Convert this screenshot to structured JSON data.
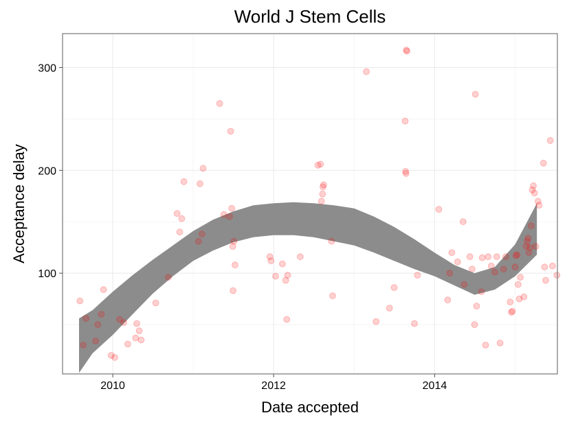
{
  "chart_data": {
    "type": "scatter",
    "title": "World J Stem Cells",
    "xlabel": "Date accepted",
    "ylabel": "Acceptance delay",
    "xlim": [
      "2009-05-18",
      "2015-07-12"
    ],
    "ylim": [
      2,
      333
    ],
    "xticks": [
      {
        "label": "2010",
        "date": "2010-01-01"
      },
      {
        "label": "2012",
        "date": "2012-01-01"
      },
      {
        "label": "2014",
        "date": "2014-01-01"
      }
    ],
    "yticks": [
      100,
      200,
      300
    ],
    "grid": true,
    "legend": "none",
    "point_color": "#ff0000",
    "point_opacity": 0.18,
    "band_color": "#8c8c8c",
    "smooth_band": [
      {
        "date": "2009-08-01",
        "lower": 3,
        "upper": 56
      },
      {
        "date": "2009-10-01",
        "lower": 22,
        "upper": 64
      },
      {
        "date": "2010-01-01",
        "lower": 40,
        "upper": 82
      },
      {
        "date": "2010-04-01",
        "lower": 60,
        "upper": 98
      },
      {
        "date": "2010-07-01",
        "lower": 80,
        "upper": 113
      },
      {
        "date": "2010-10-01",
        "lower": 97,
        "upper": 127
      },
      {
        "date": "2011-01-01",
        "lower": 112,
        "upper": 141
      },
      {
        "date": "2011-04-01",
        "lower": 122,
        "upper": 152
      },
      {
        "date": "2011-07-01",
        "lower": 130,
        "upper": 160
      },
      {
        "date": "2011-10-01",
        "lower": 135,
        "upper": 166
      },
      {
        "date": "2012-01-01",
        "lower": 137,
        "upper": 168
      },
      {
        "date": "2012-04-01",
        "lower": 137,
        "upper": 169
      },
      {
        "date": "2012-07-01",
        "lower": 135,
        "upper": 168
      },
      {
        "date": "2012-10-01",
        "lower": 131,
        "upper": 166
      },
      {
        "date": "2013-01-01",
        "lower": 127,
        "upper": 163
      },
      {
        "date": "2013-04-01",
        "lower": 120,
        "upper": 155
      },
      {
        "date": "2013-07-01",
        "lower": 112,
        "upper": 145
      },
      {
        "date": "2013-10-01",
        "lower": 104,
        "upper": 133
      },
      {
        "date": "2014-01-01",
        "lower": 97,
        "upper": 120
      },
      {
        "date": "2014-04-01",
        "lower": 88,
        "upper": 108
      },
      {
        "date": "2014-07-01",
        "lower": 79,
        "upper": 100
      },
      {
        "date": "2014-10-01",
        "lower": 84,
        "upper": 106
      },
      {
        "date": "2015-01-01",
        "lower": 97,
        "upper": 128
      },
      {
        "date": "2015-04-10",
        "lower": 118,
        "upper": 168
      }
    ],
    "points": [
      {
        "date": "2009-08-05",
        "y": 73
      },
      {
        "date": "2009-08-20",
        "y": 30
      },
      {
        "date": "2009-09-01",
        "y": 56
      },
      {
        "date": "2009-10-15",
        "y": 34
      },
      {
        "date": "2009-10-25",
        "y": 50
      },
      {
        "date": "2009-11-10",
        "y": 60
      },
      {
        "date": "2009-11-20",
        "y": 84
      },
      {
        "date": "2009-12-25",
        "y": 20
      },
      {
        "date": "2010-01-10",
        "y": 18
      },
      {
        "date": "2010-02-01",
        "y": 55
      },
      {
        "date": "2010-02-20",
        "y": 52
      },
      {
        "date": "2010-03-10",
        "y": 31
      },
      {
        "date": "2010-04-15",
        "y": 37
      },
      {
        "date": "2010-04-20",
        "y": 51
      },
      {
        "date": "2010-05-01",
        "y": 44
      },
      {
        "date": "2010-05-10",
        "y": 35
      },
      {
        "date": "2010-07-15",
        "y": 71
      },
      {
        "date": "2010-09-10",
        "y": 96
      },
      {
        "date": "2010-10-20",
        "y": 158
      },
      {
        "date": "2010-11-01",
        "y": 140
      },
      {
        "date": "2010-11-10",
        "y": 153
      },
      {
        "date": "2010-11-20",
        "y": 189
      },
      {
        "date": "2011-01-25",
        "y": 131
      },
      {
        "date": "2011-02-01",
        "y": 187
      },
      {
        "date": "2011-02-15",
        "y": 202
      },
      {
        "date": "2011-02-10",
        "y": 138
      },
      {
        "date": "2011-05-01",
        "y": 265
      },
      {
        "date": "2011-05-20",
        "y": 157
      },
      {
        "date": "2011-06-15",
        "y": 155
      },
      {
        "date": "2011-06-20",
        "y": 238
      },
      {
        "date": "2011-06-25",
        "y": 163
      },
      {
        "date": "2011-06-30",
        "y": 126
      },
      {
        "date": "2011-07-05",
        "y": 131
      },
      {
        "date": "2011-07-01",
        "y": 83
      },
      {
        "date": "2011-07-10",
        "y": 108
      },
      {
        "date": "2011-12-15",
        "y": 116
      },
      {
        "date": "2011-12-20",
        "y": 112
      },
      {
        "date": "2012-01-10",
        "y": 97
      },
      {
        "date": "2012-02-10",
        "y": 109
      },
      {
        "date": "2012-02-25",
        "y": 93
      },
      {
        "date": "2012-03-05",
        "y": 98
      },
      {
        "date": "2012-03-01",
        "y": 55
      },
      {
        "date": "2012-05-01",
        "y": 116
      },
      {
        "date": "2012-07-20",
        "y": 205
      },
      {
        "date": "2012-08-01",
        "y": 206
      },
      {
        "date": "2012-08-05",
        "y": 170
      },
      {
        "date": "2012-08-10",
        "y": 177
      },
      {
        "date": "2012-08-12",
        "y": 184
      },
      {
        "date": "2012-08-15",
        "y": 186
      },
      {
        "date": "2012-09-20",
        "y": 131
      },
      {
        "date": "2012-09-25",
        "y": 78
      },
      {
        "date": "2013-02-25",
        "y": 296
      },
      {
        "date": "2013-04-10",
        "y": 53
      },
      {
        "date": "2013-06-10",
        "y": 66
      },
      {
        "date": "2013-07-01",
        "y": 86
      },
      {
        "date": "2013-08-25",
        "y": 317
      },
      {
        "date": "2013-08-28",
        "y": 316
      },
      {
        "date": "2013-08-20",
        "y": 248
      },
      {
        "date": "2013-08-22",
        "y": 199
      },
      {
        "date": "2013-08-24",
        "y": 197
      },
      {
        "date": "2013-10-01",
        "y": 51
      },
      {
        "date": "2013-10-15",
        "y": 98
      },
      {
        "date": "2014-01-20",
        "y": 162
      },
      {
        "date": "2014-03-01",
        "y": 74
      },
      {
        "date": "2014-03-10",
        "y": 100
      },
      {
        "date": "2014-03-20",
        "y": 120
      },
      {
        "date": "2014-04-15",
        "y": 111
      },
      {
        "date": "2014-05-10",
        "y": 150
      },
      {
        "date": "2014-05-15",
        "y": 89
      },
      {
        "date": "2014-06-10",
        "y": 116
      },
      {
        "date": "2014-06-20",
        "y": 104
      },
      {
        "date": "2014-07-01",
        "y": 50
      },
      {
        "date": "2014-07-05",
        "y": 274
      },
      {
        "date": "2014-07-10",
        "y": 68
      },
      {
        "date": "2014-08-01",
        "y": 82
      },
      {
        "date": "2014-08-05",
        "y": 115
      },
      {
        "date": "2014-08-20",
        "y": 30
      },
      {
        "date": "2014-09-01",
        "y": 116
      },
      {
        "date": "2014-09-15",
        "y": 107
      },
      {
        "date": "2014-10-01",
        "y": 101
      },
      {
        "date": "2014-10-10",
        "y": 116
      },
      {
        "date": "2014-10-25",
        "y": 32
      },
      {
        "date": "2014-11-10",
        "y": 104
      },
      {
        "date": "2014-11-20",
        "y": 116
      },
      {
        "date": "2014-12-10",
        "y": 72
      },
      {
        "date": "2014-12-15",
        "y": 62
      },
      {
        "date": "2014-12-20",
        "y": 63
      },
      {
        "date": "2015-01-01",
        "y": 106
      },
      {
        "date": "2015-01-05",
        "y": 117
      },
      {
        "date": "2015-01-10",
        "y": 118
      },
      {
        "date": "2015-01-15",
        "y": 89
      },
      {
        "date": "2015-01-20",
        "y": 75
      },
      {
        "date": "2015-01-25",
        "y": 96
      },
      {
        "date": "2015-02-10",
        "y": 77
      },
      {
        "date": "2015-02-20",
        "y": 126
      },
      {
        "date": "2015-02-25",
        "y": 131
      },
      {
        "date": "2015-03-01",
        "y": 134
      },
      {
        "date": "2015-03-05",
        "y": 120
      },
      {
        "date": "2015-03-10",
        "y": 125
      },
      {
        "date": "2015-03-15",
        "y": 146
      },
      {
        "date": "2015-03-20",
        "y": 181
      },
      {
        "date": "2015-03-25",
        "y": 185
      },
      {
        "date": "2015-03-30",
        "y": 178
      },
      {
        "date": "2015-04-05",
        "y": 126
      },
      {
        "date": "2015-04-15",
        "y": 170
      },
      {
        "date": "2015-04-20",
        "y": 166
      },
      {
        "date": "2015-05-10",
        "y": 207
      },
      {
        "date": "2015-05-15",
        "y": 106
      },
      {
        "date": "2015-05-20",
        "y": 93
      },
      {
        "date": "2015-06-10",
        "y": 229
      },
      {
        "date": "2015-06-20",
        "y": 107
      },
      {
        "date": "2015-07-10",
        "y": 98
      }
    ]
  }
}
